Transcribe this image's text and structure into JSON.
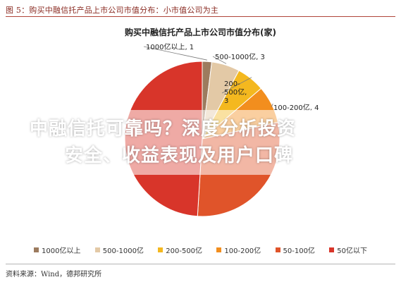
{
  "figure_caption": "图 5：购买中融信托产品上市公司市值分布：小市值公司为主",
  "source": "资料来源：Wind，德邦研究所",
  "watermark": {
    "line1": "中融信托可靠吗？深度分析投资",
    "line2": "安全、收益表现及用户口碑"
  },
  "chart_data": {
    "type": "pie",
    "title": "购买中融信托产品上市公司市值分布(家)",
    "categories": [
      "1000亿以上",
      "500-1000亿",
      "200-500亿",
      "100-200亿",
      "50-100亿",
      "50亿以下"
    ],
    "values": [
      1,
      3,
      3,
      4,
      15,
      25
    ],
    "colors": [
      "#9c7b5e",
      "#e3c9a6",
      "#f4b81f",
      "#f28e1e",
      "#e0542a",
      "#d8352a"
    ],
    "data_labels": [
      "1000亿以上, 1",
      "500-1000亿, 3",
      "200-500亿, 3",
      "100-200亿, 4",
      "",
      ""
    ],
    "legend": {
      "position": "bottom",
      "entries": [
        "1000亿以上",
        "500-1000亿",
        "200-500亿",
        "100-200亿",
        "50-100亿",
        "50亿以下"
      ]
    }
  }
}
